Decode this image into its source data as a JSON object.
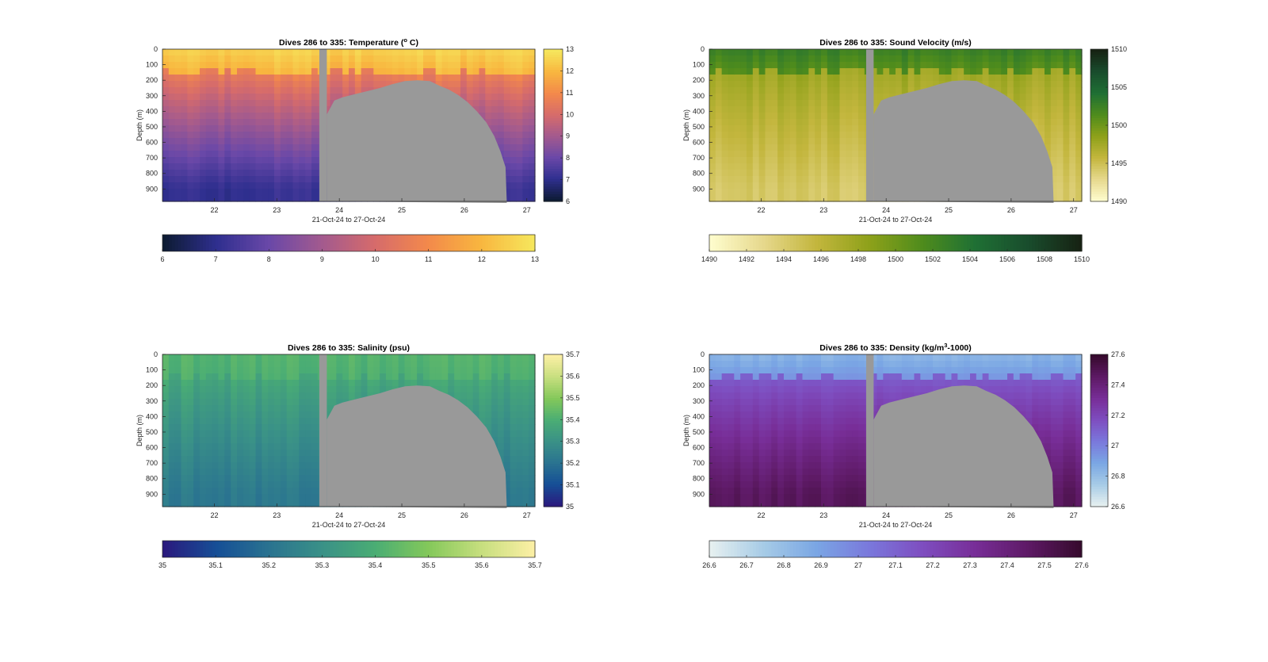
{
  "figure": {
    "xlabel": "21-Oct-24 to 27-Oct-24",
    "ylabel": "Depth (m)",
    "x_ticks": [
      22,
      23,
      24,
      25,
      26,
      27
    ],
    "x_range": [
      21.17,
      27.13
    ],
    "y_ticks": [
      0,
      100,
      200,
      300,
      400,
      500,
      600,
      700,
      800,
      900
    ],
    "y_range": [
      0,
      980
    ],
    "no_data_color": "#999999"
  },
  "chart_data": [
    {
      "type": "heatmap",
      "title_main": "Dives 286 to 335: Temperature (",
      "title_sup": "o",
      "title_end": " C)",
      "colormap": "thermal",
      "color_stops": [
        "#0d1b33",
        "#2f2f8f",
        "#6a48a8",
        "#a35a8e",
        "#d66b6b",
        "#f3894b",
        "#f8b63f",
        "#f6e65c"
      ],
      "clim": [
        6,
        13
      ],
      "colorbar_ticks": [
        6,
        7,
        8,
        9,
        10,
        11,
        12,
        13
      ],
      "horizontal_colorbar_ticks": [
        6,
        7,
        8,
        9,
        10,
        11,
        12,
        13
      ],
      "profile": {
        "surface": 12.6,
        "mixed_layer_m": 150,
        "thermocline": 10.8,
        "deep": 7.1
      }
    },
    {
      "type": "heatmap",
      "title_main": "Dives 286 to 335: Sound Velocity (m/s)",
      "title_sup": "",
      "title_end": "",
      "colormap": "speed",
      "color_stops": [
        "#fefccd",
        "#e6d88c",
        "#c3b63d",
        "#8ea11a",
        "#4f8c1c",
        "#1f7034",
        "#194d2d",
        "#172313"
      ],
      "clim": [
        1490,
        1510
      ],
      "colorbar_ticks": [
        1490,
        1495,
        1500,
        1505,
        1510
      ],
      "horizontal_colorbar_ticks": [
        1490,
        1492,
        1494,
        1496,
        1498,
        1500,
        1502,
        1504,
        1506,
        1508,
        1510
      ],
      "profile": {
        "surface": 1502.8,
        "mixed_layer_m": 150,
        "thermocline": 1497.8,
        "deep": 1494.2
      }
    },
    {
      "type": "heatmap",
      "title_main": "Dives 286 to 335: Salinity (psu)",
      "title_sup": "",
      "title_end": "",
      "colormap": "haline",
      "color_stops": [
        "#2a1a7e",
        "#164f96",
        "#2a7390",
        "#3a9187",
        "#4aad74",
        "#83c85a",
        "#c6de7e",
        "#fbefa4"
      ],
      "clim": [
        35,
        35.7
      ],
      "colorbar_ticks": [
        35,
        35.1,
        35.2,
        35.3,
        35.4,
        35.5,
        35.6,
        35.7
      ],
      "horizontal_colorbar_ticks": [
        35,
        35.1,
        35.2,
        35.3,
        35.4,
        35.5,
        35.6,
        35.7
      ],
      "profile": {
        "surface": 35.42,
        "mixed_layer_m": 150,
        "thermocline": 35.38,
        "deep": 35.22
      }
    },
    {
      "type": "heatmap",
      "title_main": "Dives 286 to 335: Density (kg/m",
      "title_sup": "3",
      "title_end": "-1000)",
      "colormap": "dense",
      "color_stops": [
        "#e6f0f0",
        "#a6cbe6",
        "#7aa6e4",
        "#7a78dc",
        "#7e4ec0",
        "#782e98",
        "#5e1a66",
        "#370a2e"
      ],
      "clim": [
        26.6,
        27.6
      ],
      "colorbar_ticks": [
        26.6,
        26.8,
        27,
        27.2,
        27.4,
        27.6
      ],
      "horizontal_colorbar_ticks": [
        26.6,
        26.7,
        26.8,
        26.9,
        27,
        27.1,
        27.2,
        27.3,
        27.4,
        27.5,
        27.6
      ],
      "profile": {
        "surface": 26.83,
        "mixed_layer_m": 150,
        "thermocline": 27.12,
        "deep": 27.48
      }
    }
  ]
}
